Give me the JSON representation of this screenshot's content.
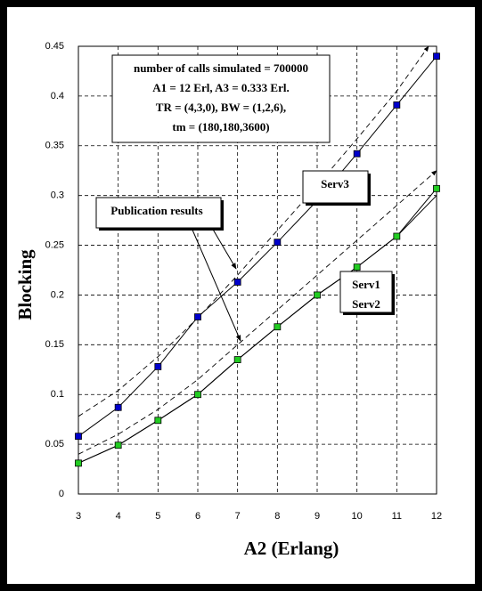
{
  "chart_data": {
    "type": "line",
    "x_label": "A2 (Erlang)",
    "y_label": "Blocking",
    "xlim": [
      3,
      12
    ],
    "ylim": [
      0,
      0.45
    ],
    "xticks": [
      3,
      4,
      5,
      6,
      7,
      8,
      9,
      10,
      11,
      12
    ],
    "yticks": [
      0,
      0.05,
      0.1,
      0.15,
      0.2,
      0.25,
      0.3,
      0.35,
      0.4,
      0.45
    ],
    "grid": true,
    "info_box": [
      "number of calls simulated = 700000",
      "A1 = 12 Erl, A3 = 0.333 Erl.",
      "TR = (4,3,0), BW = (1,2,6),",
      "tm = (180,180,3600)"
    ],
    "series": [
      {
        "name": "Serv3",
        "color": "#0000cc",
        "marker": "square",
        "x": [
          3,
          4,
          5,
          6,
          7,
          8,
          9,
          10,
          11,
          12
        ],
        "values": [
          0.058,
          0.087,
          0.128,
          0.178,
          0.213,
          0.253,
          0.295,
          0.342,
          0.391,
          0.44
        ]
      },
      {
        "name": "Serv1",
        "color": "#22cc22",
        "marker": "square",
        "x": [
          3,
          4,
          5,
          6,
          7,
          8,
          9,
          10,
          11,
          12
        ],
        "values": [
          0.031,
          0.049,
          0.074,
          0.1,
          0.135,
          0.168,
          0.2,
          0.228,
          0.259,
          0.307
        ]
      },
      {
        "name": "Serv2",
        "color": "#000000",
        "marker": "none",
        "x": [
          3,
          4,
          5,
          6,
          7,
          8,
          9,
          10,
          11,
          12
        ],
        "values": [
          0.031,
          0.049,
          0.074,
          0.1,
          0.135,
          0.168,
          0.2,
          0.228,
          0.259,
          0.3
        ]
      }
    ],
    "publication": {
      "label": "Publication results",
      "lines": [
        {
          "x": [
            3,
            4,
            5,
            6,
            7,
            8,
            9,
            10,
            11,
            11.8
          ],
          "values": [
            0.078,
            0.104,
            0.138,
            0.177,
            0.22,
            0.265,
            0.31,
            0.357,
            0.405,
            0.45
          ]
        },
        {
          "x": [
            3,
            4,
            5,
            6,
            7,
            8,
            9,
            10,
            11,
            12
          ],
          "values": [
            0.04,
            0.06,
            0.085,
            0.115,
            0.15,
            0.185,
            0.22,
            0.255,
            0.29,
            0.325
          ]
        }
      ]
    }
  }
}
